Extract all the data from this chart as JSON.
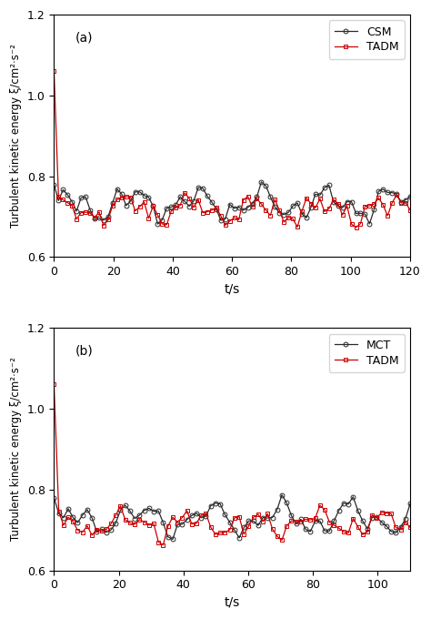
{
  "title_a": "(a)",
  "title_b": "(b)",
  "ylabel": "Turbulent kinetic energy ξ/cm²·s⁻²",
  "xlabel": "t/s",
  "ylim": [
    0.6,
    1.2
  ],
  "yticks": [
    0.6,
    0.8,
    1.0,
    1.2
  ],
  "subplot_a": {
    "xlim": [
      0,
      120
    ],
    "xticks": [
      0,
      20,
      40,
      60,
      80,
      100,
      120
    ],
    "legend": [
      "CSM",
      "TADM"
    ]
  },
  "subplot_b": {
    "xlim": [
      0,
      110
    ],
    "xticks": [
      0,
      20,
      40,
      60,
      80,
      100
    ],
    "legend": [
      "MCT",
      "TADM"
    ]
  },
  "line1_color": "#2a2a2a",
  "line2_color": "#cc0000",
  "marker1": "o",
  "marker2": "s",
  "markersize": 3.5,
  "linewidth": 0.9,
  "figsize": [
    4.74,
    6.8
  ],
  "dpi": 100
}
